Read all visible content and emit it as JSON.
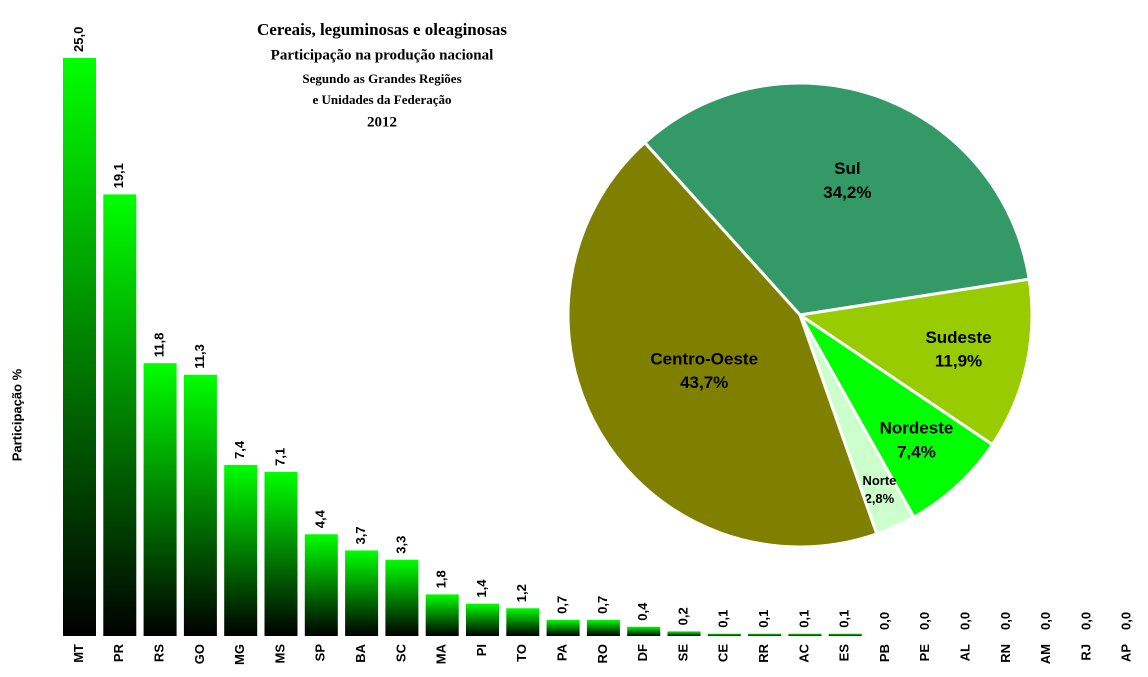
{
  "chart_data": [
    {
      "type": "bar",
      "title": "Cereais, leguminosas e oleaginosas",
      "subtitle": [
        "Participação na produção nacional",
        "Segundo as Grandes Regiões",
        "e Unidades da Federação",
        "2012"
      ],
      "y_label": "Participação %",
      "categories": [
        "MT",
        "PR",
        "RS",
        "GO",
        "MG",
        "MS",
        "SP",
        "BA",
        "SC",
        "MA",
        "PI",
        "TO",
        "PA",
        "RO",
        "DF",
        "SE",
        "CE",
        "RR",
        "AC",
        "ES",
        "PB",
        "PE",
        "AL",
        "RN",
        "AM",
        "RJ",
        "AP"
      ],
      "values": [
        25.0,
        19.1,
        11.8,
        11.3,
        7.4,
        7.1,
        4.4,
        3.7,
        3.3,
        1.8,
        1.4,
        1.2,
        0.7,
        0.7,
        0.4,
        0.2,
        0.1,
        0.1,
        0.1,
        0.1,
        0.0,
        0.0,
        0.0,
        0.0,
        0.0,
        0.0,
        0.0
      ],
      "value_labels": [
        "25,0",
        "19,1",
        "11,8",
        "11,3",
        "7,4",
        "7,1",
        "4,4",
        "3,7",
        "3,3",
        "1,8",
        "1,4",
        "1,2",
        "0,7",
        "0,7",
        "0,4",
        "0,2",
        "0,1",
        "0,1",
        "0,1",
        "0,1",
        "0,0",
        "0,0",
        "0,0",
        "0,0",
        "0,0",
        "0,0",
        "0,0"
      ],
      "color": [
        "#00ff00",
        "#000000"
      ],
      "ylim": [
        0,
        25
      ]
    },
    {
      "type": "pie",
      "categories": [
        "Sul",
        "Sudeste",
        "Nordeste",
        "Norte",
        "Centro-Oeste"
      ],
      "values": [
        34.2,
        11.9,
        7.4,
        2.8,
        43.7
      ],
      "value_labels": [
        "34,2%",
        "11,9%",
        "7,4%",
        "2,8%",
        "43,7%"
      ],
      "colors": [
        "#339966",
        "#99cc00",
        "#00ff00",
        "#ccffcc",
        "#808000"
      ]
    }
  ]
}
